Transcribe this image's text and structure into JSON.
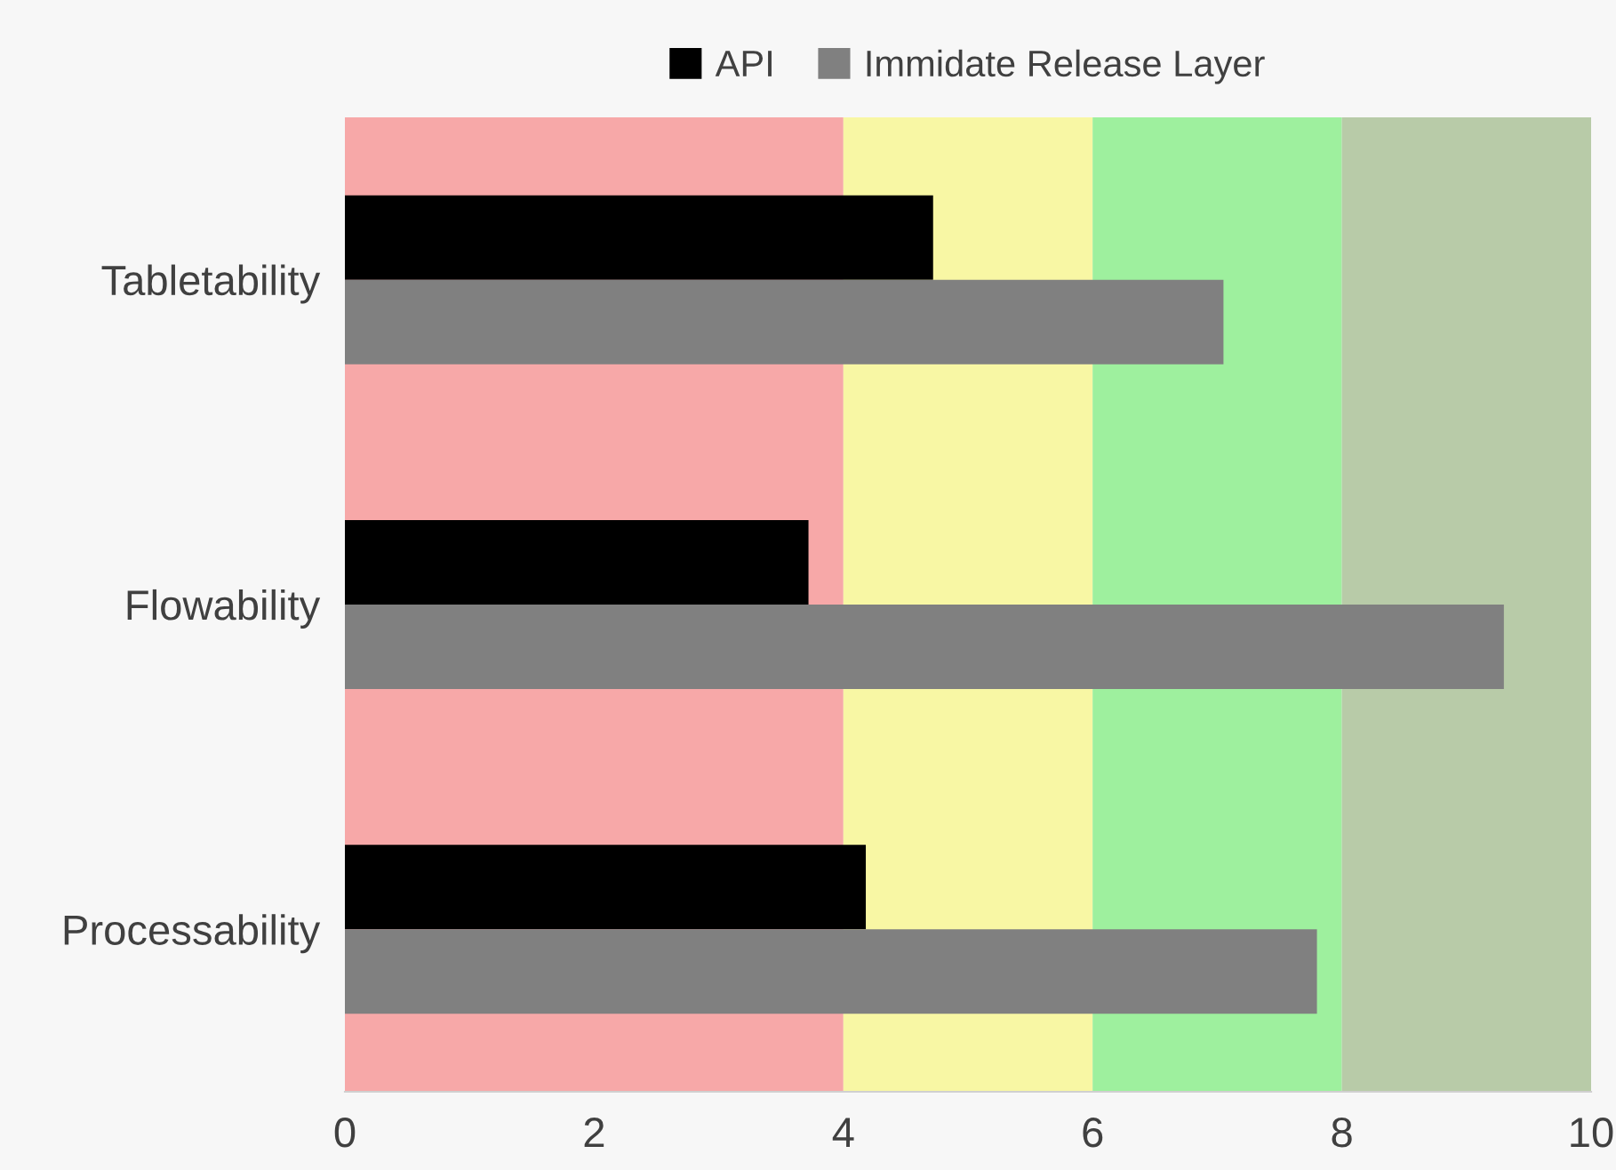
{
  "chart_data": {
    "type": "bar",
    "orientation": "horizontal",
    "categories": [
      "Tabletability",
      "Flowability",
      "Processability"
    ],
    "series": [
      {
        "name": "API",
        "color": "#000000",
        "values": [
          4.72,
          3.72,
          4.18
        ]
      },
      {
        "name": "Immidate Release Layer",
        "color": "#808080",
        "values": [
          7.05,
          9.3,
          7.8
        ]
      }
    ],
    "xlim": [
      0,
      10
    ],
    "xticks": [
      0,
      2,
      4,
      6,
      8,
      10
    ],
    "bands": [
      {
        "axis": "x",
        "from": 0,
        "to": 4,
        "color": "#f7a8a8"
      },
      {
        "axis": "x",
        "from": 4,
        "to": 6,
        "color": "#f8f7a4"
      },
      {
        "axis": "x",
        "from": 6,
        "to": 8,
        "color": "#9ef09e"
      },
      {
        "axis": "x",
        "from": 8,
        "to": 10,
        "color": "#b8cba8"
      }
    ],
    "legend": "top",
    "grid": false
  }
}
